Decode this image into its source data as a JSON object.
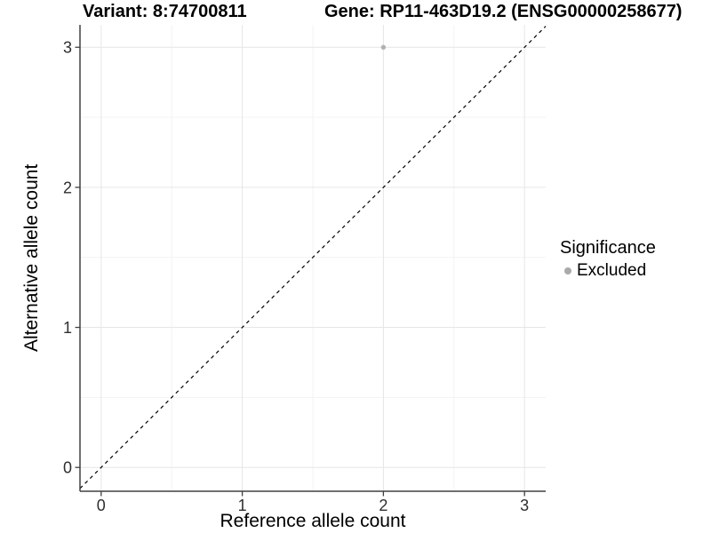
{
  "chart_data": {
    "type": "scatter",
    "title_left": "Variant: 8:74700811",
    "title_right": "Gene: RP11-463D19.2 (ENSG00000258677)",
    "xlabel": "Reference allele count",
    "ylabel": "Alternative allele count",
    "xlim": [
      -0.15,
      3.15
    ],
    "ylim": [
      -0.17,
      3.16
    ],
    "xticks": [
      0,
      1,
      2,
      3
    ],
    "yticks": [
      0,
      1,
      2,
      3
    ],
    "minor_ticks_x": [
      0.5,
      1.5,
      2.5
    ],
    "minor_ticks_y": [
      0.5,
      1.5,
      2.5
    ],
    "grid": "major+minor",
    "reference_line": {
      "type": "identity y=x",
      "slope": 1,
      "intercept": 0,
      "style": "dashed",
      "color": "#000000"
    },
    "series": [
      {
        "name": "Excluded",
        "color": "#b1b1b1",
        "points": [
          [
            2,
            3
          ]
        ]
      }
    ],
    "legend": {
      "title": "Significance",
      "position": "right",
      "entries": [
        {
          "label": "Excluded",
          "color": "#aaaaaa"
        }
      ]
    },
    "colors": {
      "grid_major": "#e6e6e6",
      "grid_minor": "#f3f3f3",
      "axis_line": "#404040",
      "tick_label": "#2e2e2e",
      "panel_bg": "#ffffff"
    }
  }
}
